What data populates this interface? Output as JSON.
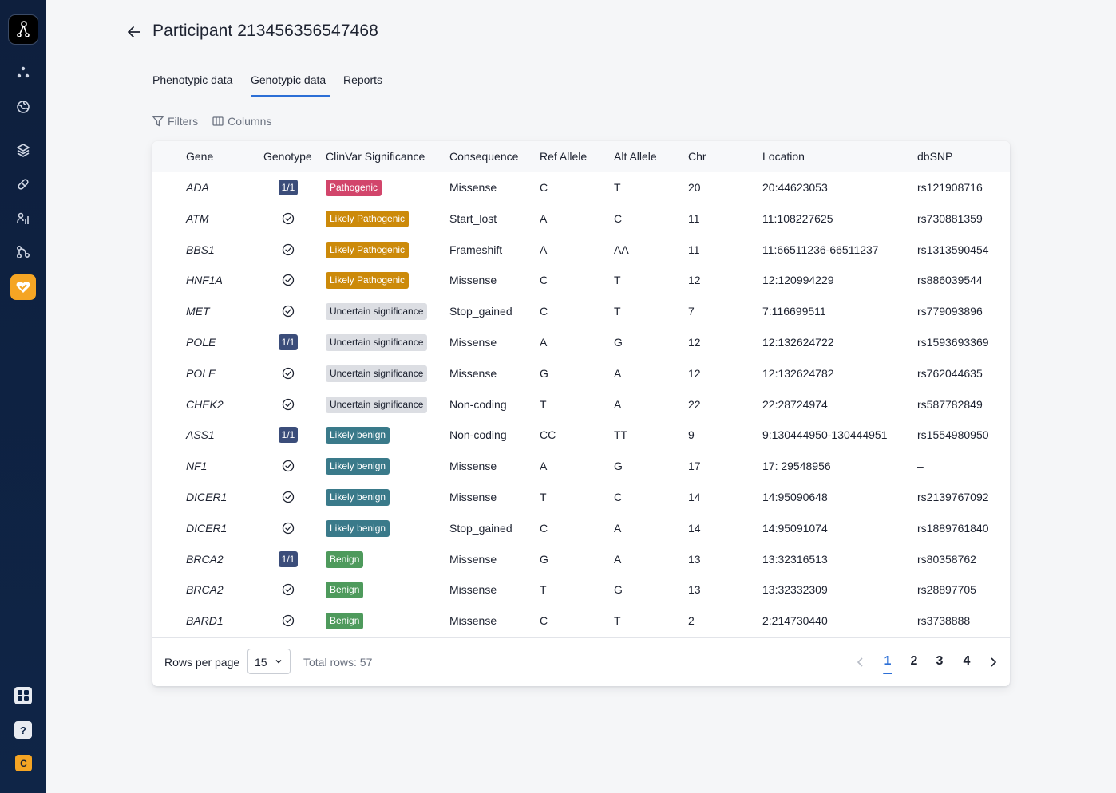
{
  "app": {
    "sidebar_icons": [
      "logo-icon",
      "nodes-icon",
      "globe-icon",
      "layers-icon",
      "pill-icon",
      "analytics-icon",
      "branches-icon",
      "heart-icon",
      "apps-icon",
      "help-icon"
    ],
    "help_glyph": "?",
    "user_initial": "C",
    "accent_color": "#f5a524"
  },
  "header": {
    "title": "Participant 213456356547468"
  },
  "tabs": [
    {
      "label": "Phenotypic data",
      "active": false
    },
    {
      "label": "Genotypic data",
      "active": true
    },
    {
      "label": "Reports",
      "active": false
    }
  ],
  "toolbar": {
    "filters_label": "Filters",
    "columns_label": "Columns"
  },
  "table": {
    "columns": [
      "Gene",
      "Genotype",
      "ClinVar Significance",
      "Consequence",
      "Ref Allele",
      "Alt Allele",
      "Chr",
      "Location",
      "dbSNP"
    ],
    "significance_colors": {
      "Pathogenic": "#d2456b",
      "Likely Pathogenic": "#cc8a0a",
      "Uncertain significance": "#dcdee3",
      "Likely benign": "#3a7a8a",
      "Benign": "#4e9a5c"
    },
    "rows": [
      {
        "gene": "ADA",
        "genotype": "1/1",
        "significance": "Pathogenic",
        "consequence": "Missense",
        "ref": "C",
        "alt": "T",
        "chr": "20",
        "location": "20:44623053",
        "dbsnp": "rs121908716"
      },
      {
        "gene": "ATM",
        "genotype": "check",
        "significance": "Likely Pathogenic",
        "consequence": "Start_lost",
        "ref": "A",
        "alt": "C",
        "chr": "11",
        "location": "11:108227625",
        "dbsnp": "rs730881359"
      },
      {
        "gene": "BBS1",
        "genotype": "check",
        "significance": "Likely Pathogenic",
        "consequence": "Frameshift",
        "ref": "A",
        "alt": "AA",
        "chr": "11",
        "location": "11:66511236-66511237",
        "dbsnp": "rs1313590454"
      },
      {
        "gene": "HNF1A",
        "genotype": "check",
        "significance": "Likely Pathogenic",
        "consequence": "Missense",
        "ref": "C",
        "alt": "T",
        "chr": "12",
        "location": "12:120994229",
        "dbsnp": "rs886039544"
      },
      {
        "gene": "MET",
        "genotype": "check",
        "significance": "Uncertain significance",
        "consequence": "Stop_gained",
        "ref": "C",
        "alt": "T",
        "chr": "7",
        "location": "7:116699511",
        "dbsnp": "rs779093896"
      },
      {
        "gene": "POLE",
        "genotype": "1/1",
        "significance": "Uncertain significance",
        "consequence": "Missense",
        "ref": "A",
        "alt": "G",
        "chr": "12",
        "location": "12:132624722",
        "dbsnp": "rs1593693369"
      },
      {
        "gene": "POLE",
        "genotype": "check",
        "significance": "Uncertain significance",
        "consequence": "Missense",
        "ref": "G",
        "alt": "A",
        "chr": "12",
        "location": "12:132624782",
        "dbsnp": "rs762044635"
      },
      {
        "gene": "CHEK2",
        "genotype": "check",
        "significance": "Uncertain significance",
        "consequence": "Non-coding",
        "ref": "T",
        "alt": "A",
        "chr": "22",
        "location": "22:28724974",
        "dbsnp": "rs587782849"
      },
      {
        "gene": "ASS1",
        "genotype": "1/1",
        "significance": "Likely benign",
        "consequence": "Non-coding",
        "ref": "CC",
        "alt": "TT",
        "chr": "9",
        "location": "9:130444950-130444951",
        "dbsnp": "rs1554980950"
      },
      {
        "gene": "NF1",
        "genotype": "check",
        "significance": "Likely benign",
        "consequence": "Missense",
        "ref": "A",
        "alt": "G",
        "chr": "17",
        "location": "17: 29548956",
        "dbsnp": "–"
      },
      {
        "gene": "DICER1",
        "genotype": "check",
        "significance": "Likely benign",
        "consequence": "Missense",
        "ref": "T",
        "alt": "C",
        "chr": "14",
        "location": "14:95090648",
        "dbsnp": "rs2139767092"
      },
      {
        "gene": "DICER1",
        "genotype": "check",
        "significance": "Likely benign",
        "consequence": "Stop_gained",
        "ref": "C",
        "alt": "A",
        "chr": "14",
        "location": "14:95091074",
        "dbsnp": "rs1889761840"
      },
      {
        "gene": "BRCA2",
        "genotype": "1/1",
        "significance": "Benign",
        "consequence": "Missense",
        "ref": "G",
        "alt": "A",
        "chr": "13",
        "location": "13:32316513",
        "dbsnp": "rs80358762"
      },
      {
        "gene": "BRCA2",
        "genotype": "check",
        "significance": "Benign",
        "consequence": "Missense",
        "ref": "T",
        "alt": "G",
        "chr": "13",
        "location": "13:32332309",
        "dbsnp": "rs28897705"
      },
      {
        "gene": "BARD1",
        "genotype": "check",
        "significance": "Benign",
        "consequence": "Missense",
        "ref": "C",
        "alt": "T",
        "chr": "2",
        "location": "2:214730440",
        "dbsnp": "rs3738888"
      }
    ]
  },
  "footer": {
    "rows_per_page_label": "Rows per page",
    "rows_per_page_value": "15",
    "total_rows_label": "Total rows: 57",
    "pages": [
      "1",
      "2",
      "3",
      "4"
    ],
    "current_page": "1"
  }
}
